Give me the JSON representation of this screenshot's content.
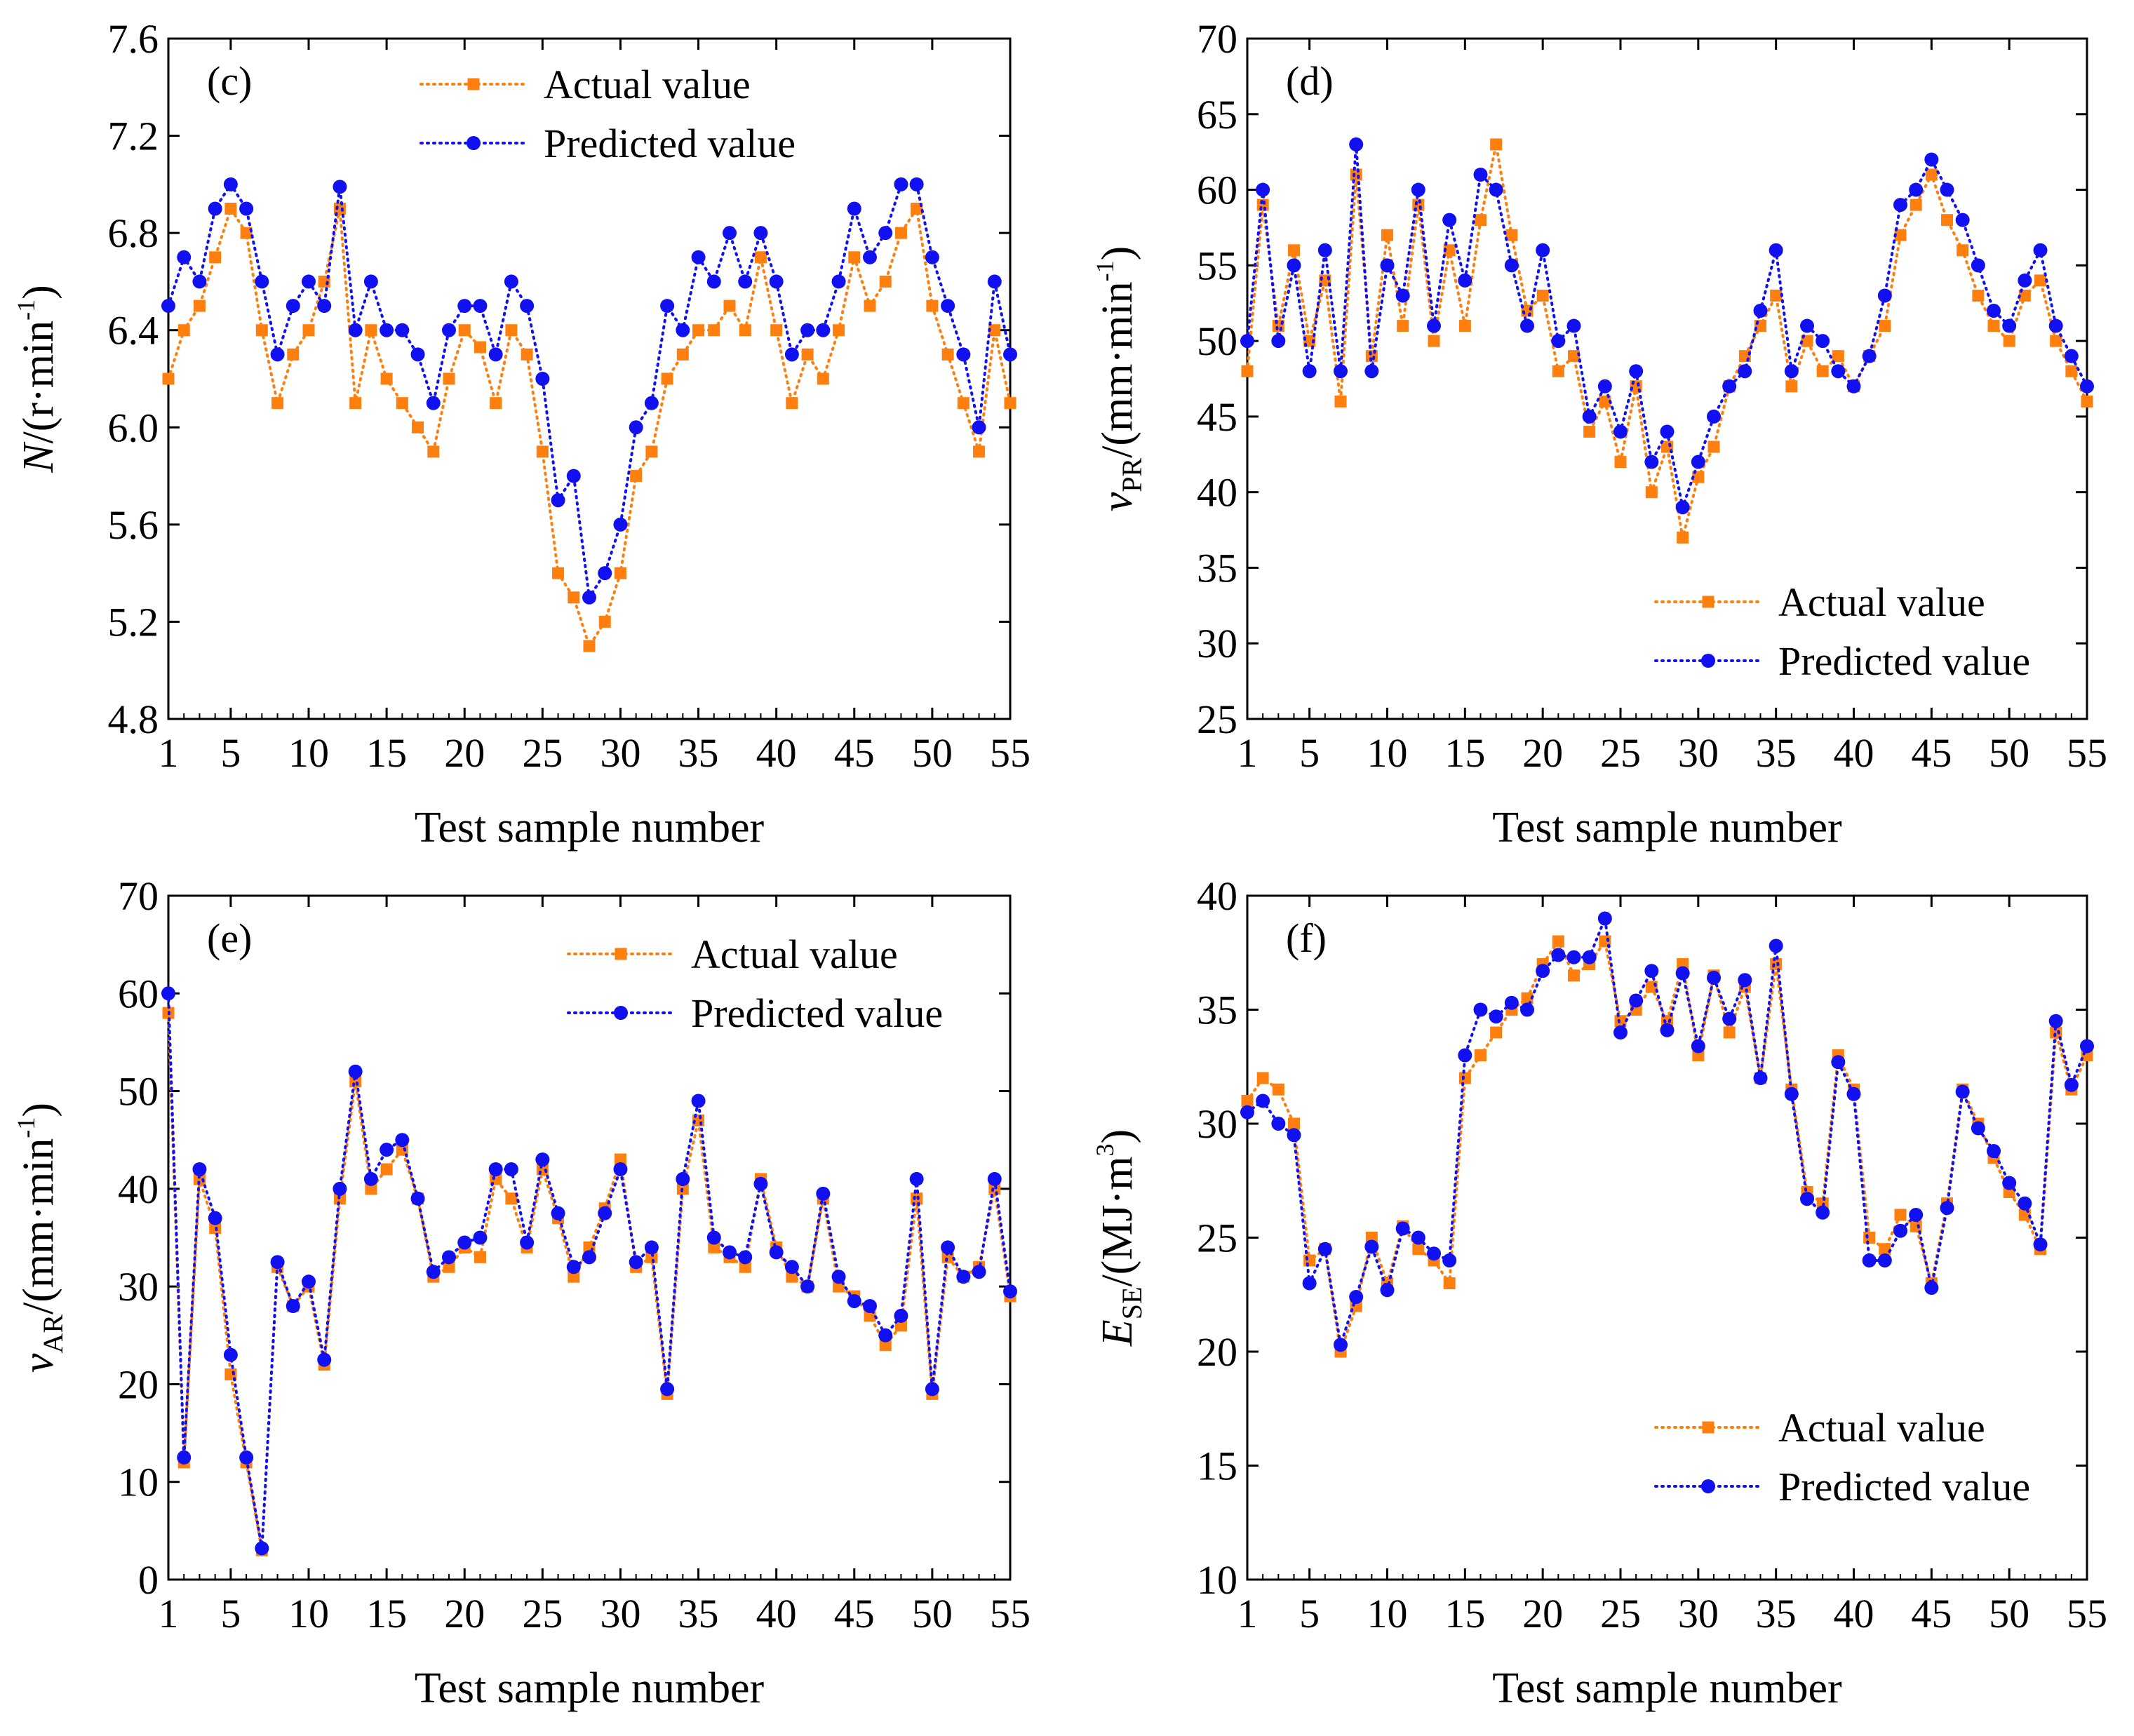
{
  "chart_data": [
    {
      "type": "line",
      "panel": "(c)",
      "xlabel": "Test sample number",
      "ylabel": {
        "main": "N",
        "rest": "/(r·min",
        "sup": "-1",
        "close": ")"
      },
      "xlim": [
        1,
        55
      ],
      "xticks": [
        1,
        5,
        10,
        15,
        20,
        25,
        30,
        35,
        40,
        45,
        50,
        55
      ],
      "ylim": [
        4.8,
        7.6
      ],
      "yticks": [
        "4.8",
        "5.2",
        "5.6",
        "6.0",
        "6.4",
        "6.8",
        "7.2",
        "7.6"
      ],
      "legend": {
        "position": "top-center",
        "entries": [
          "Actual value",
          "Predicted value"
        ]
      },
      "x": [
        1,
        2,
        3,
        4,
        5,
        6,
        7,
        8,
        9,
        10,
        11,
        12,
        13,
        14,
        15,
        16,
        17,
        18,
        19,
        20,
        21,
        22,
        23,
        24,
        25,
        26,
        27,
        28,
        29,
        30,
        31,
        32,
        33,
        34,
        35,
        36,
        37,
        38,
        39,
        40,
        41,
        42,
        43,
        44,
        45,
        46,
        47,
        48,
        49,
        50,
        51,
        52,
        53,
        54,
        55
      ],
      "series": [
        {
          "name": "Actual value",
          "color": "#ff7f0e",
          "marker": "square",
          "values": [
            6.2,
            6.4,
            6.5,
            6.7,
            6.9,
            6.8,
            6.4,
            6.1,
            6.3,
            6.4,
            6.6,
            6.9,
            6.1,
            6.4,
            6.2,
            6.1,
            6.0,
            5.9,
            6.2,
            6.4,
            6.33,
            6.1,
            6.4,
            6.3,
            5.9,
            5.4,
            5.3,
            5.1,
            5.2,
            5.4,
            5.8,
            5.9,
            6.2,
            6.3,
            6.4,
            6.4,
            6.5,
            6.4,
            6.7,
            6.4,
            6.1,
            6.3,
            6.2,
            6.4,
            6.7,
            6.5,
            6.6,
            6.8,
            6.9,
            6.5,
            6.3,
            6.1,
            5.9,
            6.4,
            6.1
          ]
        },
        {
          "name": "Predicted value",
          "color": "#1010f0",
          "marker": "circle",
          "values": [
            6.5,
            6.7,
            6.6,
            6.9,
            7.0,
            6.9,
            6.6,
            6.3,
            6.5,
            6.6,
            6.5,
            6.99,
            6.4,
            6.6,
            6.4,
            6.4,
            6.3,
            6.1,
            6.4,
            6.5,
            6.5,
            6.3,
            6.6,
            6.5,
            6.2,
            5.7,
            5.8,
            5.3,
            5.4,
            5.6,
            6.0,
            6.1,
            6.5,
            6.4,
            6.7,
            6.6,
            6.8,
            6.6,
            6.8,
            6.6,
            6.3,
            6.4,
            6.4,
            6.6,
            6.9,
            6.7,
            6.8,
            7.0,
            7.0,
            6.7,
            6.5,
            6.3,
            6.0,
            6.6,
            6.3
          ]
        }
      ]
    },
    {
      "type": "line",
      "panel": "(d)",
      "xlabel": "Test sample number",
      "ylabel": {
        "main": "v",
        "sub": "PR",
        "rest": "/(mm·min",
        "sup": "-1",
        "close": ")"
      },
      "xlim": [
        1,
        55
      ],
      "xticks": [
        1,
        5,
        10,
        15,
        20,
        25,
        30,
        35,
        40,
        45,
        50,
        55
      ],
      "ylim": [
        25,
        70
      ],
      "yticks": [
        "25",
        "30",
        "35",
        "40",
        "45",
        "50",
        "55",
        "60",
        "65",
        "70"
      ],
      "legend": {
        "position": "bottom-right",
        "entries": [
          "Actual value",
          "Predicted value"
        ]
      },
      "x": [
        1,
        2,
        3,
        4,
        5,
        6,
        7,
        8,
        9,
        10,
        11,
        12,
        13,
        14,
        15,
        16,
        17,
        18,
        19,
        20,
        21,
        22,
        23,
        24,
        25,
        26,
        27,
        28,
        29,
        30,
        31,
        32,
        33,
        34,
        35,
        36,
        37,
        38,
        39,
        40,
        41,
        42,
        43,
        44,
        45,
        46,
        47,
        48,
        49,
        50,
        51,
        52,
        53,
        54,
        55
      ],
      "series": [
        {
          "name": "Actual value",
          "color": "#ff7f0e",
          "marker": "square",
          "values": [
            48,
            59,
            51,
            56,
            50,
            54,
            46,
            61,
            49,
            57,
            51,
            59,
            50,
            56,
            51,
            58,
            63,
            57,
            52,
            53,
            48,
            49,
            44,
            46,
            42,
            47,
            40,
            43,
            37,
            41,
            43,
            47,
            49,
            51,
            53,
            47,
            50,
            48,
            49,
            47,
            49,
            51,
            57,
            59,
            61,
            58,
            56,
            53,
            51,
            50,
            53,
            54,
            50,
            48,
            46
          ]
        },
        {
          "name": "Predicted value",
          "color": "#1010f0",
          "marker": "circle",
          "values": [
            50,
            60,
            50,
            55,
            48,
            56,
            48,
            63,
            48,
            55,
            53,
            60,
            51,
            58,
            54,
            61,
            60,
            55,
            51,
            56,
            50,
            51,
            45,
            47,
            44,
            48,
            42,
            44,
            39,
            42,
            45,
            47,
            48,
            52,
            56,
            48,
            51,
            50,
            48,
            47,
            49,
            53,
            59,
            60,
            62,
            60,
            58,
            55,
            52,
            51,
            54,
            56,
            51,
            49,
            47
          ]
        }
      ]
    },
    {
      "type": "line",
      "panel": "(e)",
      "xlabel": "Test sample number",
      "ylabel": {
        "main": "v",
        "sub": "AR",
        "rest": "/(mm·min",
        "sup": "-1",
        "close": ")"
      },
      "xlim": [
        1,
        55
      ],
      "xticks": [
        1,
        5,
        10,
        15,
        20,
        25,
        30,
        35,
        40,
        45,
        50,
        55
      ],
      "ylim": [
        0,
        70
      ],
      "yticks": [
        "0",
        "10",
        "20",
        "30",
        "40",
        "50",
        "60",
        "70"
      ],
      "legend": {
        "position": "top-right",
        "entries": [
          "Actual value",
          "Predicted value"
        ]
      },
      "x": [
        1,
        2,
        3,
        4,
        5,
        6,
        7,
        8,
        9,
        10,
        11,
        12,
        13,
        14,
        15,
        16,
        17,
        18,
        19,
        20,
        21,
        22,
        23,
        24,
        25,
        26,
        27,
        28,
        29,
        30,
        31,
        32,
        33,
        34,
        35,
        36,
        37,
        38,
        39,
        40,
        41,
        42,
        43,
        44,
        45,
        46,
        47,
        48,
        49,
        50,
        51,
        52,
        53,
        54,
        55
      ],
      "series": [
        {
          "name": "Actual value",
          "color": "#ff7f0e",
          "marker": "square",
          "values": [
            58,
            12,
            41,
            36,
            21,
            12,
            3,
            32,
            28,
            30,
            22,
            39,
            51,
            40,
            42,
            44,
            39,
            31,
            32,
            34,
            33,
            41,
            39,
            34,
            42,
            37,
            31,
            34,
            38,
            43,
            32,
            33,
            19,
            40,
            47,
            34,
            33,
            32,
            41,
            34,
            31,
            30,
            39,
            30,
            29,
            27,
            24,
            26,
            39,
            19,
            33,
            31,
            32,
            40,
            29
          ]
        },
        {
          "name": "Predicted value",
          "color": "#1010f0",
          "marker": "circle",
          "values": [
            60,
            12.5,
            42,
            37,
            23,
            12.5,
            3.2,
            32.5,
            28,
            30.5,
            22.5,
            40,
            52,
            41,
            44,
            45,
            39,
            31.5,
            33,
            34.5,
            35,
            42,
            42,
            34.5,
            43,
            37.5,
            32,
            33,
            37.5,
            42,
            32.5,
            34,
            19.5,
            41,
            49,
            35,
            33.5,
            33,
            40.5,
            33.5,
            32,
            30,
            39.5,
            31,
            28.5,
            28,
            25,
            27,
            41,
            19.5,
            34,
            31,
            31.5,
            41,
            29.5
          ]
        }
      ]
    },
    {
      "type": "line",
      "panel": "(f)",
      "xlabel": "Test sample number",
      "ylabel": {
        "main": "E",
        "sub": "SE",
        "rest": "/(MJ·m",
        "sup": "3",
        "close": ")"
      },
      "xlim": [
        1,
        55
      ],
      "xticks": [
        1,
        5,
        10,
        15,
        20,
        25,
        30,
        35,
        40,
        45,
        50,
        55
      ],
      "ylim": [
        10,
        40
      ],
      "yticks": [
        "10",
        "15",
        "20",
        "25",
        "30",
        "35",
        "40"
      ],
      "legend": {
        "position": "bottom-right",
        "entries": [
          "Actual value",
          "Predicted value"
        ]
      },
      "x": [
        1,
        2,
        3,
        4,
        5,
        6,
        7,
        8,
        9,
        10,
        11,
        12,
        13,
        14,
        15,
        16,
        17,
        18,
        19,
        20,
        21,
        22,
        23,
        24,
        25,
        26,
        27,
        28,
        29,
        30,
        31,
        32,
        33,
        34,
        35,
        36,
        37,
        38,
        39,
        40,
        41,
        42,
        43,
        44,
        45,
        46,
        47,
        48,
        49,
        50,
        51,
        52,
        53,
        54,
        55
      ],
      "series": [
        {
          "name": "Actual value",
          "color": "#ff7f0e",
          "marker": "square",
          "values": [
            31,
            32,
            31.5,
            30,
            24,
            24.5,
            20,
            22,
            25,
            23,
            25.5,
            24.5,
            24,
            23,
            32,
            33,
            34,
            35,
            35.5,
            37,
            38,
            36.5,
            37,
            38,
            34.5,
            35,
            36,
            34.5,
            37,
            33,
            36.5,
            34,
            36,
            32,
            37,
            31.5,
            27,
            26.5,
            33,
            31.5,
            25,
            24.5,
            26,
            25.5,
            23,
            26.5,
            31.5,
            30,
            28.5,
            27,
            26,
            24.5,
            34,
            31.5,
            33
          ]
        },
        {
          "name": "Predicted value",
          "color": "#1010f0",
          "marker": "circle",
          "values": [
            30.5,
            31,
            30,
            29.5,
            23,
            24.5,
            20.3,
            22.4,
            24.6,
            22.7,
            25.4,
            25,
            24.3,
            24,
            33,
            35,
            34.7,
            35.3,
            35,
            36.7,
            37.4,
            37.3,
            37.3,
            39,
            34,
            35.4,
            36.7,
            34.1,
            36.6,
            33.4,
            36.4,
            34.6,
            36.3,
            32,
            37.8,
            31.3,
            26.7,
            26.1,
            32.7,
            31.3,
            24,
            24,
            25.3,
            26,
            22.8,
            26.3,
            31.4,
            29.8,
            28.8,
            27.4,
            26.5,
            24.7,
            34.5,
            31.7,
            33.4
          ]
        }
      ]
    }
  ]
}
